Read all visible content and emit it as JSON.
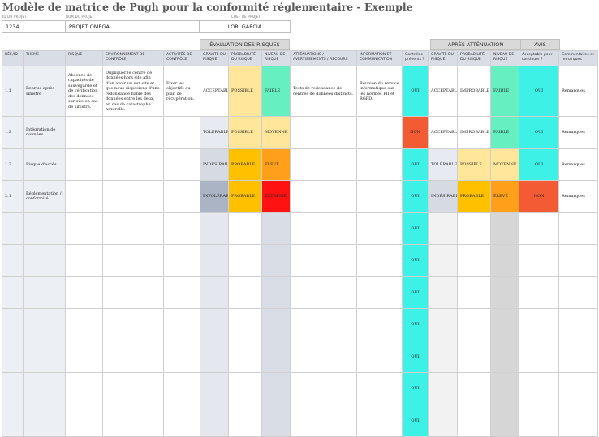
{
  "title": "Modèle de matrice de Pugh pour la conformité réglementaire - Exemple",
  "meta": {
    "project_id_label": "ID DU PROJET",
    "project_id": "1234",
    "project_name_label": "NOM DU PROJET",
    "project_name": "PROJET OMÉGA",
    "lead_label": "CHEF DE PROJET",
    "lead": "LORI GARCIA"
  },
  "sections": {
    "evaluation": "ÉVALUATION DES RISQUES",
    "after": "APRÈS ATTÉNUATION",
    "opinion": "AVIS"
  },
  "columns": [
    "RÉF./ID",
    "THÈME",
    "RISQUE",
    "ENVIRONNEMENT DE CONTRÔLE",
    "ACTIVITÉS DE CONTRÔLE",
    "GRAVITÉ DU RISQUE",
    "PROBABILITÉ DU RISQUE",
    "NIVEAU DE RISQUE",
    "ATTÉNUATIONS / AVERTISSEMENTS / RECOURS",
    "INFORMATION ET COMMUNICATION",
    "Contrôles prévents ?",
    "GRAVITÉ DU RISQUE",
    "PROBABILITÉ DU RISQUE",
    "NIVEAU DE RISQUE",
    "Acceptable pour continuer ?",
    "Commentaires et remarques"
  ],
  "rows": [
    {
      "id": "1.1",
      "theme": "Reprise après sinistre",
      "risk": "Absence de capacités de sauvegarde et de vérification des données sur site en cas de sinistre.",
      "env": "Dupliquer le centre de données hors site afin d'en avoir un sur site et que nous disposions d'une redondance fiable des données entre les deux, en cas de catastrophe naturelle.",
      "activities": "Fixer les objectifs du plan de récupération.",
      "gravity": "ACCEPTABLE",
      "probability": "POSSIBLE",
      "level": "FAIBLE",
      "mitigation": "Tests de redondance de centres de données distincts.",
      "info": "Réunion du service informatique sur les normes PII et RGPD.",
      "controls": "OUI",
      "gravity2": "ACCEPTABLE",
      "probability2": "IMPROBABLE",
      "level2": "FAIBLE",
      "acceptable": "OUI",
      "remarks": "Remarques"
    },
    {
      "id": "1.2",
      "theme": "Intégration de données",
      "risk": "",
      "env": "",
      "activities": "",
      "gravity": "TOLÉRABLE",
      "probability": "POSSIBLE",
      "level": "MOYENNE",
      "mitigation": "",
      "info": "",
      "controls": "NON",
      "gravity2": "ACCEPTABLE",
      "probability2": "IMPROBABLE",
      "level2": "FAIBLE",
      "acceptable": "OUI",
      "remarks": "Remarques"
    },
    {
      "id": "1.3",
      "theme": "Risque d'accès",
      "risk": "",
      "env": "",
      "activities": "",
      "gravity": "INDÉSIRABLE",
      "probability": "PROBABLE",
      "level": "ÉLEVÉ",
      "mitigation": "",
      "info": "",
      "controls": "OUI",
      "gravity2": "TOLÉRABLE",
      "probability2": "POSSIBLE",
      "level2": "MOYENNE",
      "acceptable": "OUI",
      "remarks": "Remarques"
    },
    {
      "id": "2.1",
      "theme": "Réglementation / conformité",
      "risk": "",
      "env": "",
      "activities": "",
      "gravity": "INTOLÉRABLE",
      "probability": "PROBABLE",
      "level": "EXTRÊME",
      "mitigation": "",
      "info": "",
      "controls": "OUI",
      "gravity2": "INDÉSIRABLE",
      "probability2": "PROBABLE",
      "level2": "ÉLEVÉ",
      "acceptable": "NON",
      "remarks": "Remarques"
    }
  ],
  "empty_rows_controls": [
    "OUI",
    "OUI",
    "OUI",
    "OUI",
    "OUI",
    "OUI",
    "OUI"
  ],
  "colors": {
    "cyan": "#3ef1e6",
    "red": "#f35b34",
    "green": "#66efc1",
    "yellow": "#ffe69a",
    "amber": "#ffc000",
    "orange": "#ff9f1a",
    "bright_red": "#ff1212",
    "header": "#d9dde5"
  }
}
